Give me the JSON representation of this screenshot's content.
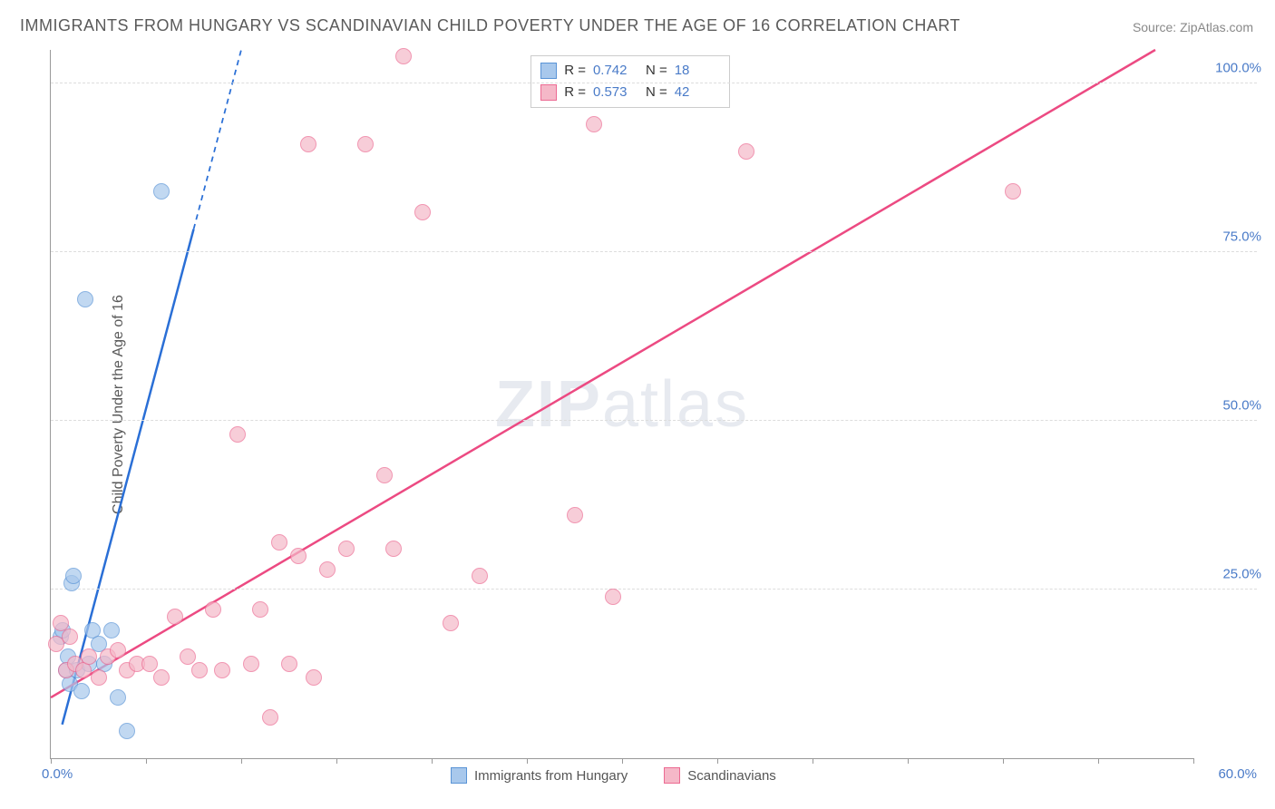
{
  "title": "IMMIGRANTS FROM HUNGARY VS SCANDINAVIAN CHILD POVERTY UNDER THE AGE OF 16 CORRELATION CHART",
  "source_label": "Source:",
  "source_name": "ZipAtlas.com",
  "ylabel": "Child Poverty Under the Age of 16",
  "watermark_pre": "ZIP",
  "watermark_post": "atlas",
  "chart": {
    "type": "scatter",
    "background_color": "#ffffff",
    "grid_color": "#dddddd",
    "axis_color": "#999999",
    "text_color": "#5a5a5a",
    "value_color": "#4a7bc8",
    "xlim": [
      0,
      60
    ],
    "ylim": [
      0,
      105
    ],
    "x_ticks": [
      0,
      5,
      10,
      15,
      20,
      25,
      30,
      35,
      40,
      45,
      50,
      55,
      60
    ],
    "x_tick_labels": {
      "0": "0.0%",
      "60": "60.0%"
    },
    "y_ticks": [
      25,
      50,
      75,
      100
    ],
    "y_tick_labels": [
      "25.0%",
      "50.0%",
      "75.0%",
      "100.0%"
    ],
    "marker_radius": 9,
    "marker_opacity": 0.35,
    "line_width": 2.5
  },
  "series": [
    {
      "key": "hungary",
      "label": "Immigrants from Hungary",
      "color_fill": "#a8c8ec",
      "color_stroke": "#5a94d6",
      "line_color": "#2a6fd6",
      "R_label": "R =",
      "R": "0.742",
      "N_label": "N =",
      "N": "18",
      "regression": {
        "x1": 0.6,
        "y1": 5,
        "x2": 10,
        "y2": 105,
        "dash_from_x": 7.5
      },
      "points": [
        {
          "x": 0.5,
          "y": 18
        },
        {
          "x": 0.6,
          "y": 19
        },
        {
          "x": 0.8,
          "y": 13
        },
        {
          "x": 0.9,
          "y": 15
        },
        {
          "x": 1.0,
          "y": 11
        },
        {
          "x": 1.1,
          "y": 26
        },
        {
          "x": 1.2,
          "y": 27
        },
        {
          "x": 1.4,
          "y": 13
        },
        {
          "x": 1.6,
          "y": 10
        },
        {
          "x": 1.8,
          "y": 68
        },
        {
          "x": 2.0,
          "y": 14
        },
        {
          "x": 2.2,
          "y": 19
        },
        {
          "x": 2.5,
          "y": 17
        },
        {
          "x": 2.8,
          "y": 14
        },
        {
          "x": 3.2,
          "y": 19
        },
        {
          "x": 3.5,
          "y": 9
        },
        {
          "x": 4.0,
          "y": 4
        },
        {
          "x": 5.8,
          "y": 84
        }
      ]
    },
    {
      "key": "scandinavian",
      "label": "Scandinavians",
      "color_fill": "#f5b8c8",
      "color_stroke": "#ec6a92",
      "line_color": "#ec4a82",
      "R_label": "R =",
      "R": "0.573",
      "N_label": "N =",
      "N": "42",
      "regression": {
        "x1": 0,
        "y1": 9,
        "x2": 58,
        "y2": 105
      },
      "points": [
        {
          "x": 0.3,
          "y": 17
        },
        {
          "x": 0.5,
          "y": 20
        },
        {
          "x": 0.8,
          "y": 13
        },
        {
          "x": 1.0,
          "y": 18
        },
        {
          "x": 1.3,
          "y": 14
        },
        {
          "x": 1.7,
          "y": 13
        },
        {
          "x": 2.0,
          "y": 15
        },
        {
          "x": 2.5,
          "y": 12
        },
        {
          "x": 3.0,
          "y": 15
        },
        {
          "x": 3.5,
          "y": 16
        },
        {
          "x": 4.0,
          "y": 13
        },
        {
          "x": 4.5,
          "y": 14
        },
        {
          "x": 5.2,
          "y": 14
        },
        {
          "x": 5.8,
          "y": 12
        },
        {
          "x": 6.5,
          "y": 21
        },
        {
          "x": 7.2,
          "y": 15
        },
        {
          "x": 7.8,
          "y": 13
        },
        {
          "x": 8.5,
          "y": 22
        },
        {
          "x": 9.0,
          "y": 13
        },
        {
          "x": 9.8,
          "y": 48
        },
        {
          "x": 10.5,
          "y": 14
        },
        {
          "x": 11.0,
          "y": 22
        },
        {
          "x": 11.5,
          "y": 6
        },
        {
          "x": 12.0,
          "y": 32
        },
        {
          "x": 12.5,
          "y": 14
        },
        {
          "x": 13.0,
          "y": 30
        },
        {
          "x": 13.5,
          "y": 91
        },
        {
          "x": 13.8,
          "y": 12
        },
        {
          "x": 14.5,
          "y": 28
        },
        {
          "x": 15.5,
          "y": 31
        },
        {
          "x": 16.5,
          "y": 91
        },
        {
          "x": 17.5,
          "y": 42
        },
        {
          "x": 18.0,
          "y": 31
        },
        {
          "x": 18.5,
          "y": 104
        },
        {
          "x": 19.5,
          "y": 81
        },
        {
          "x": 21.0,
          "y": 20
        },
        {
          "x": 22.5,
          "y": 27
        },
        {
          "x": 27.5,
          "y": 36
        },
        {
          "x": 28.5,
          "y": 94
        },
        {
          "x": 29.5,
          "y": 24
        },
        {
          "x": 36.5,
          "y": 90
        },
        {
          "x": 50.5,
          "y": 84
        }
      ]
    }
  ]
}
